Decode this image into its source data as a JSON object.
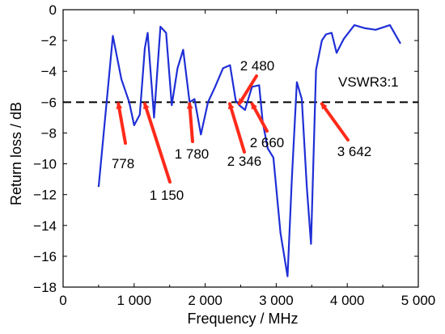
{
  "chart_data": {
    "type": "line",
    "xlabel": "Frequency / MHz",
    "ylabel": "Return loss / dB",
    "xlim": [
      0,
      5000
    ],
    "ylim": [
      -18,
      0
    ],
    "x_ticks": [
      0,
      1000,
      2000,
      3000,
      4000,
      5000
    ],
    "x_tick_labels": [
      "0",
      "1 000",
      "2 000",
      "3 000",
      "4 000",
      "5 000"
    ],
    "y_ticks": [
      0,
      -2,
      -4,
      -6,
      -8,
      -10,
      -12,
      -14,
      -16,
      -18
    ],
    "y_tick_labels": [
      "0",
      "−2",
      "−4",
      "−6",
      "−8",
      "−10",
      "−12",
      "−14",
      "−16",
      "−18"
    ],
    "grid": false,
    "series": [
      {
        "color": "#1f2fd6",
        "x": [
          500,
          700,
          820,
          930,
          1000,
          1080,
          1150,
          1190,
          1280,
          1370,
          1450,
          1530,
          1610,
          1690,
          1780,
          1850,
          1940,
          2040,
          2140,
          2250,
          2350,
          2430,
          2480,
          2560,
          2660,
          2760,
          2810,
          2880,
          2960,
          3060,
          3160,
          3220,
          3290,
          3360,
          3430,
          3490,
          3560,
          3642,
          3700,
          3780,
          3850,
          3950,
          4100,
          4250,
          4400,
          4600,
          4750
        ],
        "y": [
          -11.5,
          -1.7,
          -4.5,
          -6.0,
          -7.5,
          -6.8,
          -2.5,
          -1.5,
          -7.0,
          -1.1,
          -1.5,
          -6.2,
          -3.8,
          -2.6,
          -6.0,
          -5.8,
          -8.1,
          -6.0,
          -5.0,
          -3.8,
          -3.6,
          -5.9,
          -6.2,
          -6.5,
          -5.0,
          -4.9,
          -7.3,
          -9.0,
          -9.6,
          -14.5,
          -17.3,
          -11.0,
          -4.7,
          -5.8,
          -11.5,
          -15.2,
          -3.9,
          -2.0,
          -1.6,
          -1.5,
          -2.8,
          -1.9,
          -1.0,
          -1.2,
          -1.3,
          -1.0,
          -2.2
        ]
      }
    ],
    "threshold": {
      "y": -6,
      "label": "VSWR3:1",
      "style": "dashed",
      "color": "#000000"
    },
    "annotations": [
      {
        "label": "778",
        "x": 778,
        "y": -6,
        "color": "#ff2a1a"
      },
      {
        "label": "1 150",
        "x": 1150,
        "y": -6,
        "color": "#ff2a1a"
      },
      {
        "label": "1 780",
        "x": 1780,
        "y": -6,
        "color": "#ff2a1a"
      },
      {
        "label": "2 346",
        "x": 2346,
        "y": -6,
        "color": "#ff2a1a"
      },
      {
        "label": "2 480",
        "x": 2480,
        "y": -6,
        "color": "#ff2a1a"
      },
      {
        "label": "2 660",
        "x": 2660,
        "y": -6,
        "color": "#ff2a1a"
      },
      {
        "label": "3 642",
        "x": 3642,
        "y": -6,
        "color": "#ff2a1a"
      }
    ]
  }
}
